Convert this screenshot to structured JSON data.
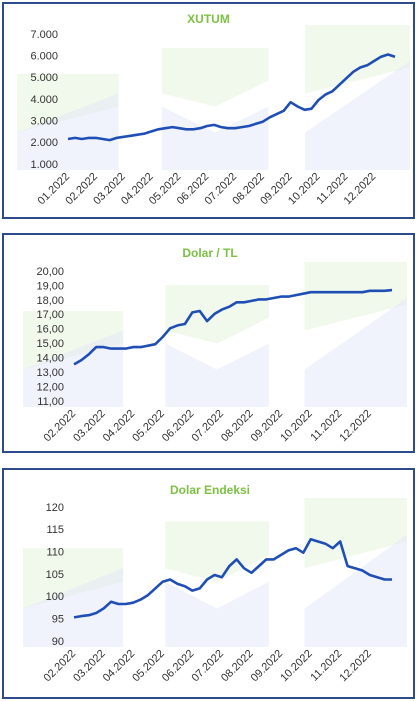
{
  "chart_data": [
    {
      "type": "line",
      "title": "XUTUM",
      "color": "#1f4fb5",
      "grid": false,
      "ylim": [
        1000,
        7000
      ],
      "yticks": [
        {
          "value": 1000,
          "label": "1.000"
        },
        {
          "value": 2000,
          "label": "2.000"
        },
        {
          "value": 3000,
          "label": "3.000"
        },
        {
          "value": 4000,
          "label": "4.000"
        },
        {
          "value": 5000,
          "label": "5.000"
        },
        {
          "value": 6000,
          "label": "6.000"
        },
        {
          "value": 7000,
          "label": "7.000"
        }
      ],
      "categories": [
        "01.2022",
        null,
        null,
        null,
        "02.2022",
        null,
        null,
        null,
        "03.2022",
        null,
        null,
        null,
        "04.2022",
        null,
        null,
        null,
        "05.2022",
        null,
        null,
        null,
        "06.2022",
        null,
        null,
        null,
        "07.2022",
        null,
        null,
        null,
        "08.2022",
        null,
        null,
        null,
        "09.2022",
        null,
        null,
        null,
        "10.2022",
        null,
        null,
        null,
        "11.2022",
        null,
        null,
        null,
        "12.2022",
        null,
        null,
        null
      ],
      "values": [
        2200,
        2250,
        2200,
        2250,
        2250,
        2200,
        2150,
        2250,
        2300,
        2350,
        2400,
        2450,
        2550,
        2650,
        2700,
        2750,
        2700,
        2650,
        2650,
        2700,
        2800,
        2850,
        2750,
        2700,
        2700,
        2750,
        2800,
        2900,
        3000,
        3200,
        3350,
        3500,
        3900,
        3700,
        3550,
        3600,
        4000,
        4250,
        4400,
        4700,
        5000,
        5300,
        5500,
        5600,
        5800,
        6000,
        6100,
        6000
      ]
    },
    {
      "type": "line",
      "title": "Dolar / TL",
      "color": "#1f4fb5",
      "grid": false,
      "ylim": [
        11,
        20
      ],
      "yticks": [
        {
          "value": 11,
          "label": "11,00"
        },
        {
          "value": 12,
          "label": "12,00"
        },
        {
          "value": 13,
          "label": "13,00"
        },
        {
          "value": 14,
          "label": "14,00"
        },
        {
          "value": 15,
          "label": "15,00"
        },
        {
          "value": 16,
          "label": "16,00"
        },
        {
          "value": 17,
          "label": "17,00"
        },
        {
          "value": 18,
          "label": "18,00"
        },
        {
          "value": 19,
          "label": "19,00"
        },
        {
          "value": 20,
          "label": "20,00"
        }
      ],
      "categories": [
        "02.2022",
        null,
        null,
        null,
        "03.2022",
        null,
        null,
        null,
        "04.2022",
        null,
        null,
        null,
        "05.2022",
        null,
        null,
        null,
        "06.2022",
        null,
        null,
        null,
        "07.2022",
        null,
        null,
        null,
        "08.2022",
        null,
        null,
        null,
        "09.2022",
        null,
        null,
        null,
        "10.2022",
        null,
        null,
        null,
        "11.2022",
        null,
        null,
        null,
        "12.2022",
        null,
        null,
        null
      ],
      "values": [
        13.6,
        13.9,
        14.3,
        14.8,
        14.8,
        14.7,
        14.7,
        14.7,
        14.8,
        14.8,
        14.9,
        15.0,
        15.5,
        16.1,
        16.3,
        16.4,
        17.2,
        17.3,
        16.6,
        17.1,
        17.4,
        17.6,
        17.9,
        17.9,
        18.0,
        18.1,
        18.1,
        18.2,
        18.3,
        18.3,
        18.4,
        18.5,
        18.6,
        18.6,
        18.6,
        18.6,
        18.6,
        18.6,
        18.6,
        18.6,
        18.7,
        18.7,
        18.7,
        18.75
      ]
    },
    {
      "type": "line",
      "title": "Dolar Endeksi",
      "color": "#1f4fb5",
      "grid": false,
      "ylim": [
        90,
        120
      ],
      "yticks": [
        90,
        95,
        100,
        105,
        110,
        115,
        120
      ],
      "categories": [
        "02.2022",
        null,
        null,
        null,
        "03.2022",
        null,
        null,
        null,
        "04.2022",
        null,
        null,
        null,
        "05.2022",
        null,
        null,
        null,
        "06.2022",
        null,
        null,
        null,
        "07.2022",
        null,
        null,
        null,
        "08.2022",
        null,
        null,
        null,
        "09.2022",
        null,
        null,
        null,
        "10.2022",
        null,
        null,
        null,
        "11.2022",
        null,
        null,
        null,
        "12.2022",
        null,
        null,
        null
      ],
      "values": [
        95.5,
        95.8,
        96,
        96.5,
        97.5,
        99,
        98.5,
        98.5,
        98.8,
        99.5,
        100.5,
        102,
        103.5,
        104,
        103,
        102.5,
        101.5,
        102,
        104,
        105,
        104.5,
        107,
        108.5,
        106.5,
        105.5,
        107,
        108.5,
        108.5,
        109.5,
        110.5,
        111,
        110,
        113,
        112.5,
        112,
        111,
        112.5,
        107,
        106.5,
        106,
        105,
        104.5,
        104,
        104
      ]
    }
  ]
}
